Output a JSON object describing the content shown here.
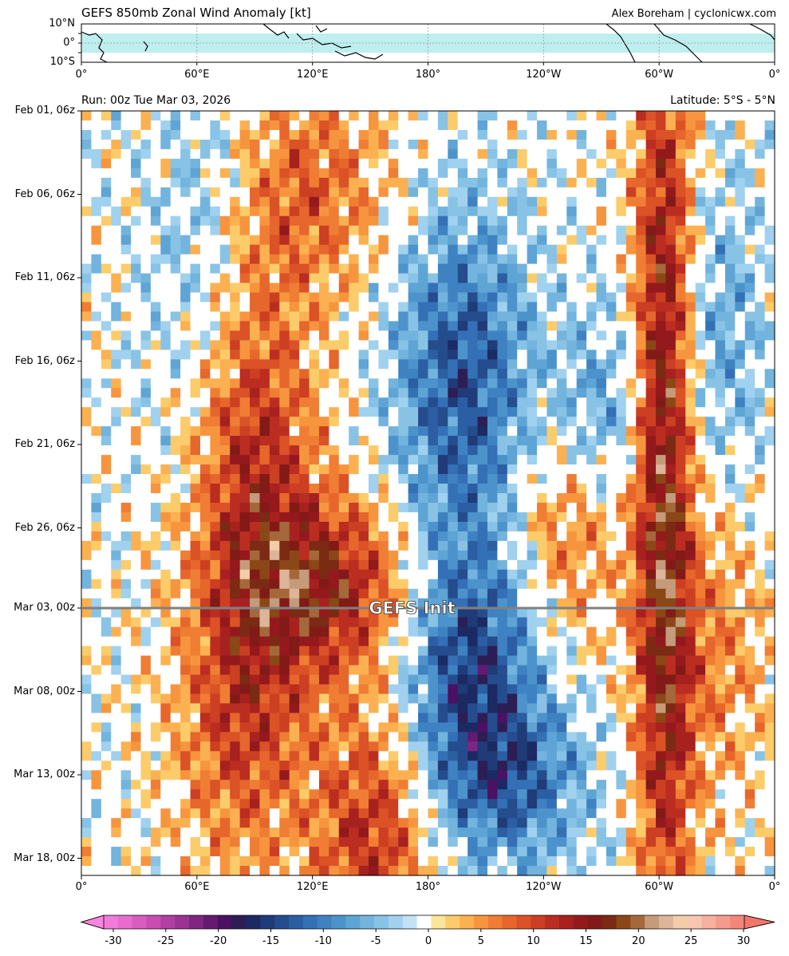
{
  "header": {
    "title": "GEFS 850mb Zonal Wind Anomaly [kt]",
    "credit": "Alex Boreham | cyclonicwx.com",
    "run": "Run: 00z Tue Mar 03, 2026",
    "latitude": "Latitude: 5°S - 5°N"
  },
  "map": {
    "lat_labels": [
      "10°N",
      "0°",
      "10°S"
    ],
    "lon_labels": [
      "0°",
      "60°E",
      "120°E",
      "180°",
      "120°W",
      "60°W",
      "0°"
    ]
  },
  "chart_data": {
    "type": "heatmap",
    "title": "GEFS 850mb Zonal Wind Anomaly [kt]",
    "x_tick_labels": [
      "0°",
      "60°E",
      "120°E",
      "180°",
      "120°W",
      "60°W",
      "0°"
    ],
    "x_range": [
      0,
      360
    ],
    "y_tick_labels": [
      "Feb 01, 06z",
      "Feb 06, 06z",
      "Feb 11, 06z",
      "Feb 16, 06z",
      "Feb 21, 06z",
      "Feb 26, 06z",
      "Mar 03, 00z",
      "Mar 08, 00z",
      "Mar 13, 00z",
      "Mar 18, 00z"
    ],
    "init_line_label": "GEFS Init",
    "init_time": "Mar 03, 00z",
    "colorbar": {
      "min": -30,
      "max": 30,
      "ticks": [
        "-30",
        "-25",
        "-20",
        "-15",
        "-10",
        "-5",
        "0",
        "5",
        "10",
        "15",
        "20",
        "25",
        "30"
      ],
      "colors": [
        "#f27ad8",
        "#e86ccc",
        "#d95cbf",
        "#c94db1",
        "#b23fa2",
        "#9a3391",
        "#7f2683",
        "#651a72",
        "#4b1162",
        "#2c1e55",
        "#1b2a62",
        "#1f3b78",
        "#254c8c",
        "#2b5ea2",
        "#3470b6",
        "#3f82c2",
        "#4d93cb",
        "#5ea4d4",
        "#72b4dd",
        "#88c3e6",
        "#a0d1ee",
        "#c2e3f5",
        "#ffffff",
        "#fbe59b",
        "#fccc6b",
        "#fbb151",
        "#f7953f",
        "#f07d34",
        "#e6662c",
        "#da5226",
        "#cc3f22",
        "#bb2d20",
        "#a7211f",
        "#94191d",
        "#821a17",
        "#7b2a14",
        "#8b4716",
        "#a5683a",
        "#c49b7b",
        "#dcb59a",
        "#f2cda9",
        "#f8c6b3",
        "#f8b0a0",
        "#f59a8d",
        "#f3857b"
      ]
    },
    "grid": true
  },
  "colors": {
    "land_band": "#bfeeee",
    "init_line": "#808080"
  }
}
